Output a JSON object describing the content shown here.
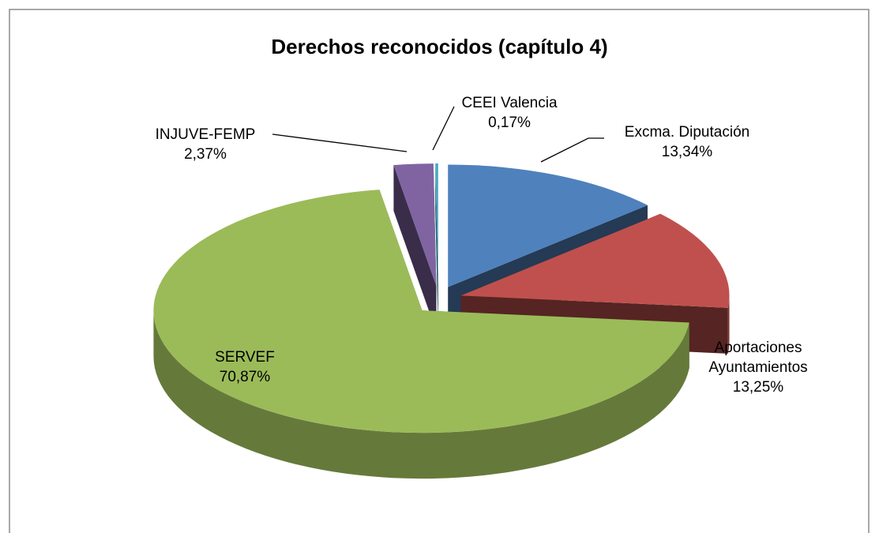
{
  "chart_data": {
    "type": "pie",
    "title": "Derechos reconocidos (capítulo 4)",
    "categories": [
      "Excma. Diputación",
      "Aportaciones Ayuntamientos",
      "SERVEF",
      "INJUVE-FEMP",
      "CEEI Valencia"
    ],
    "values": [
      13.34,
      13.25,
      70.87,
      2.37,
      0.17
    ],
    "value_labels": [
      "13,34%",
      "13,25%",
      "70,87%",
      "2,37%",
      "0,17%"
    ],
    "colors": [
      "#4f81bd",
      "#c0504d",
      "#9bbb59",
      "#8064a2",
      "#4bacc6"
    ]
  }
}
